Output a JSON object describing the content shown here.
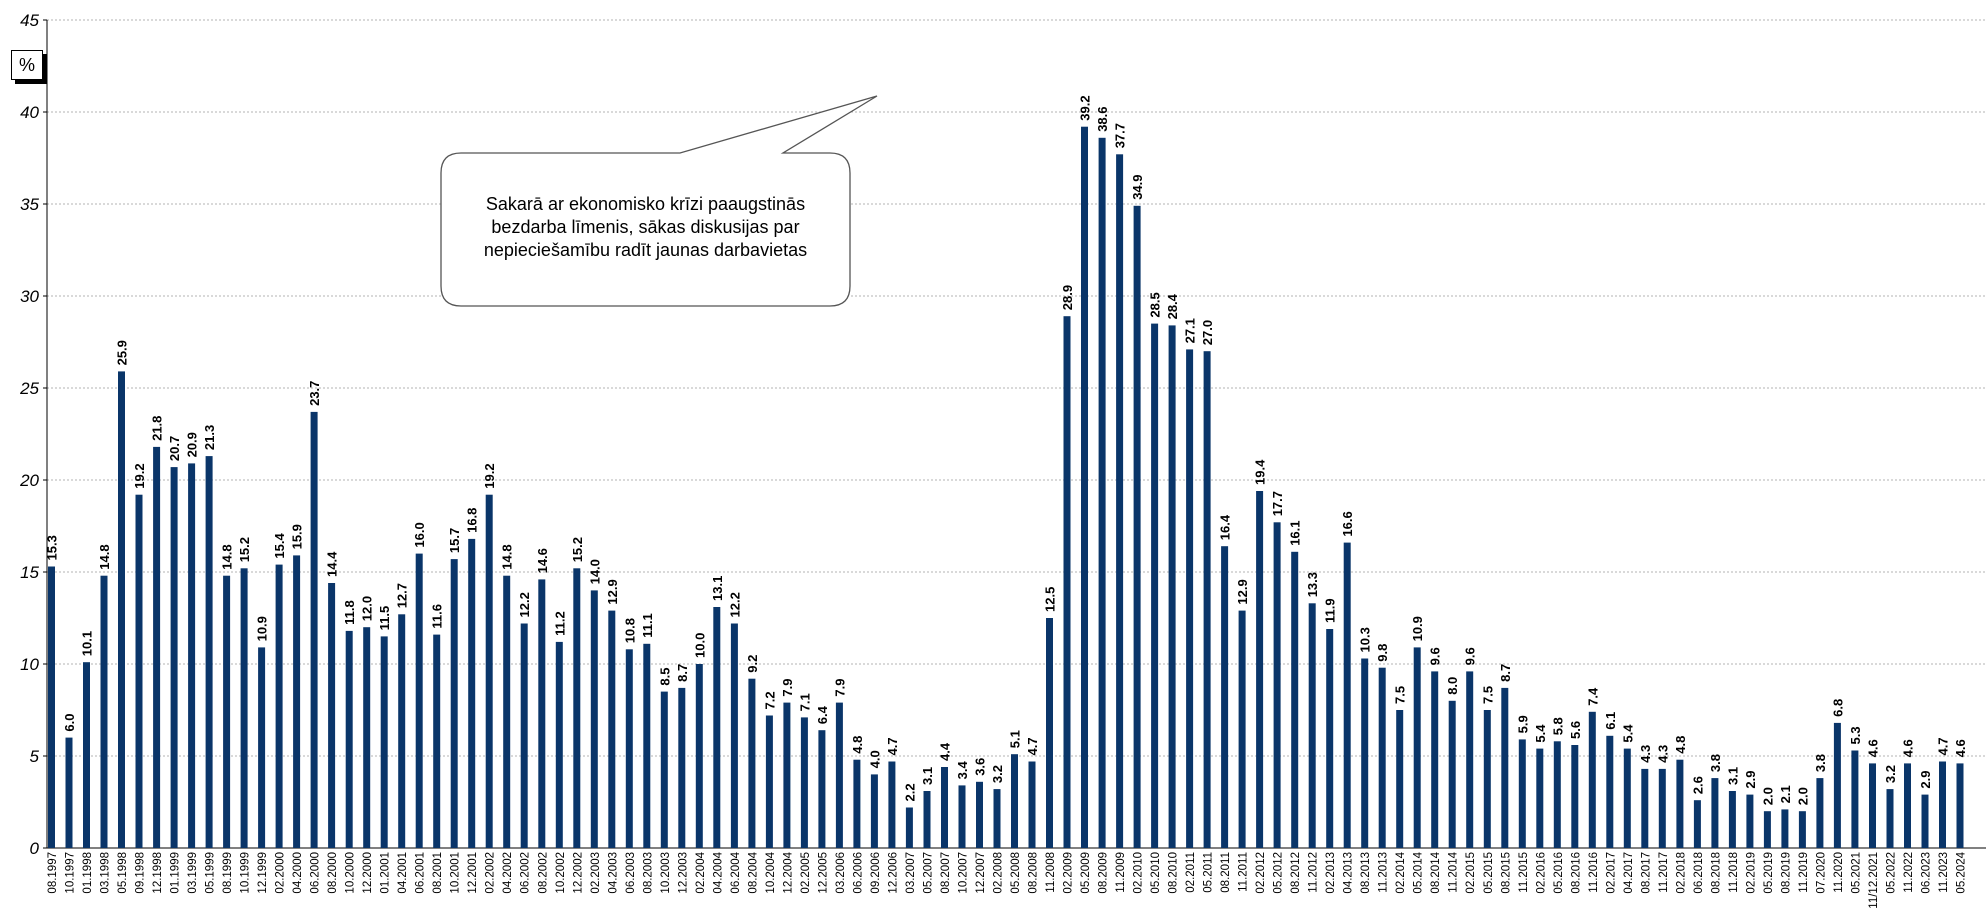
{
  "chart_data": {
    "type": "bar",
    "unit_label": "%",
    "ylim": [
      0,
      45
    ],
    "y_ticks": [
      0,
      5,
      10,
      15,
      20,
      25,
      30,
      35,
      40,
      45
    ],
    "grid": true,
    "bar_color": "#0a3569",
    "annotation": "Sakarā ar ekonomisko krīzi paaugstinās\nbezdarba līmenis, sākas diskusijas par\nnepieciešamību radīt jaunas darbavietas",
    "points": [
      {
        "x": "08.1997",
        "y": 15.3
      },
      {
        "x": "10.1997",
        "y": 6.0
      },
      {
        "x": "01.1998",
        "y": 10.1
      },
      {
        "x": "03.1998",
        "y": 14.8
      },
      {
        "x": "05.1998",
        "y": 25.9
      },
      {
        "x": "09.1998",
        "y": 19.2
      },
      {
        "x": "12.1998",
        "y": 21.8
      },
      {
        "x": "01.1999",
        "y": 20.7
      },
      {
        "x": "03.1999",
        "y": 20.9
      },
      {
        "x": "05.1999",
        "y": 21.3
      },
      {
        "x": "08.1999",
        "y": 14.8
      },
      {
        "x": "10.1999",
        "y": 15.2
      },
      {
        "x": "12.1999",
        "y": 10.9
      },
      {
        "x": "02.2000",
        "y": 15.4
      },
      {
        "x": "04.2000",
        "y": 15.9
      },
      {
        "x": "06.2000",
        "y": 23.7
      },
      {
        "x": "08.2000",
        "y": 14.4
      },
      {
        "x": "10.2000",
        "y": 11.8
      },
      {
        "x": "12.2000",
        "y": 12.0
      },
      {
        "x": "01.2001",
        "y": 11.5
      },
      {
        "x": "04.2001",
        "y": 12.7
      },
      {
        "x": "06.2001",
        "y": 16.0
      },
      {
        "x": "08.2001",
        "y": 11.6
      },
      {
        "x": "10.2001",
        "y": 15.7
      },
      {
        "x": "12.2001",
        "y": 16.8
      },
      {
        "x": "02.2002",
        "y": 19.2
      },
      {
        "x": "04.2002",
        "y": 14.8
      },
      {
        "x": "06.2002",
        "y": 12.2
      },
      {
        "x": "08.2002",
        "y": 14.6
      },
      {
        "x": "10.2002",
        "y": 11.2
      },
      {
        "x": "12.2002",
        "y": 15.2
      },
      {
        "x": "02.2003",
        "y": 14.0
      },
      {
        "x": "04.2003",
        "y": 12.9
      },
      {
        "x": "06.2003",
        "y": 10.8
      },
      {
        "x": "08.2003",
        "y": 11.1
      },
      {
        "x": "10.2003",
        "y": 8.5
      },
      {
        "x": "12.2003",
        "y": 8.7
      },
      {
        "x": "02.2004",
        "y": 10.0
      },
      {
        "x": "04.2004",
        "y": 13.1
      },
      {
        "x": "06.2004",
        "y": 12.2
      },
      {
        "x": "08.2004",
        "y": 9.2
      },
      {
        "x": "10.2004",
        "y": 7.2
      },
      {
        "x": "12.2004",
        "y": 7.9
      },
      {
        "x": "02.2005",
        "y": 7.1
      },
      {
        "x": "12.2005",
        "y": 6.4
      },
      {
        "x": "03.2006",
        "y": 7.9
      },
      {
        "x": "06.2006",
        "y": 4.8
      },
      {
        "x": "09.2006",
        "y": 4.0
      },
      {
        "x": "12.2006",
        "y": 4.7
      },
      {
        "x": "03.2007",
        "y": 2.2
      },
      {
        "x": "05.2007",
        "y": 3.1
      },
      {
        "x": "08.2007",
        "y": 4.4
      },
      {
        "x": "10.2007",
        "y": 3.4
      },
      {
        "x": "12.2007",
        "y": 3.6
      },
      {
        "x": "02.2008",
        "y": 3.2
      },
      {
        "x": "05.2008",
        "y": 5.1
      },
      {
        "x": "08.2008",
        "y": 4.7
      },
      {
        "x": "11.2008",
        "y": 12.5
      },
      {
        "x": "02.2009",
        "y": 28.9
      },
      {
        "x": "05.2009",
        "y": 39.2
      },
      {
        "x": "08.2009",
        "y": 38.6
      },
      {
        "x": "11.2009",
        "y": 37.7
      },
      {
        "x": "02.2010",
        "y": 34.9
      },
      {
        "x": "05.2010",
        "y": 28.5
      },
      {
        "x": "08.2010",
        "y": 28.4
      },
      {
        "x": "02.2011",
        "y": 27.1
      },
      {
        "x": "05.2011",
        "y": 27.0
      },
      {
        "x": "08.2011",
        "y": 16.4
      },
      {
        "x": "11.2011",
        "y": 12.9
      },
      {
        "x": "02.2012",
        "y": 19.4
      },
      {
        "x": "05.2012",
        "y": 17.7
      },
      {
        "x": "08.2012",
        "y": 16.1
      },
      {
        "x": "11.2012",
        "y": 13.3
      },
      {
        "x": "02.2013",
        "y": 11.9
      },
      {
        "x": "04.2013",
        "y": 16.6
      },
      {
        "x": "08.2013",
        "y": 10.3
      },
      {
        "x": "11.2013",
        "y": 9.8
      },
      {
        "x": "02.2014",
        "y": 7.5
      },
      {
        "x": "05.2014",
        "y": 10.9
      },
      {
        "x": "08.2014",
        "y": 9.6
      },
      {
        "x": "11.2014",
        "y": 8.0
      },
      {
        "x": "02.2015",
        "y": 9.6
      },
      {
        "x": "05.2015",
        "y": 7.5
      },
      {
        "x": "08.2015",
        "y": 8.7
      },
      {
        "x": "11.2015",
        "y": 5.9
      },
      {
        "x": "02.2016",
        "y": 5.4
      },
      {
        "x": "05.2016",
        "y": 5.8
      },
      {
        "x": "08.2016",
        "y": 5.6
      },
      {
        "x": "11.2016",
        "y": 7.4
      },
      {
        "x": "02.2017",
        "y": 6.1
      },
      {
        "x": "04.2017",
        "y": 5.4
      },
      {
        "x": "08.2017",
        "y": 4.3
      },
      {
        "x": "11.2017",
        "y": 4.3
      },
      {
        "x": "02.2018",
        "y": 4.8
      },
      {
        "x": "06.2018",
        "y": 2.6
      },
      {
        "x": "08.2018",
        "y": 3.8
      },
      {
        "x": "11.2018",
        "y": 3.1
      },
      {
        "x": "02.2019",
        "y": 2.9
      },
      {
        "x": "05.2019",
        "y": 2.0
      },
      {
        "x": "08.2019",
        "y": 2.1
      },
      {
        "x": "11.2019",
        "y": 2.0
      },
      {
        "x": "07.2020",
        "y": 3.8
      },
      {
        "x": "11.2020",
        "y": 6.8
      },
      {
        "x": "05.2021",
        "y": 5.3
      },
      {
        "x": "11/12.2021",
        "y": 4.6
      },
      {
        "x": "05.2022",
        "y": 3.2
      },
      {
        "x": "11.2022",
        "y": 4.6
      },
      {
        "x": "06.2023",
        "y": 2.9
      },
      {
        "x": "11.2023",
        "y": 4.7
      },
      {
        "x": "05.2024",
        "y": 4.6
      }
    ]
  }
}
